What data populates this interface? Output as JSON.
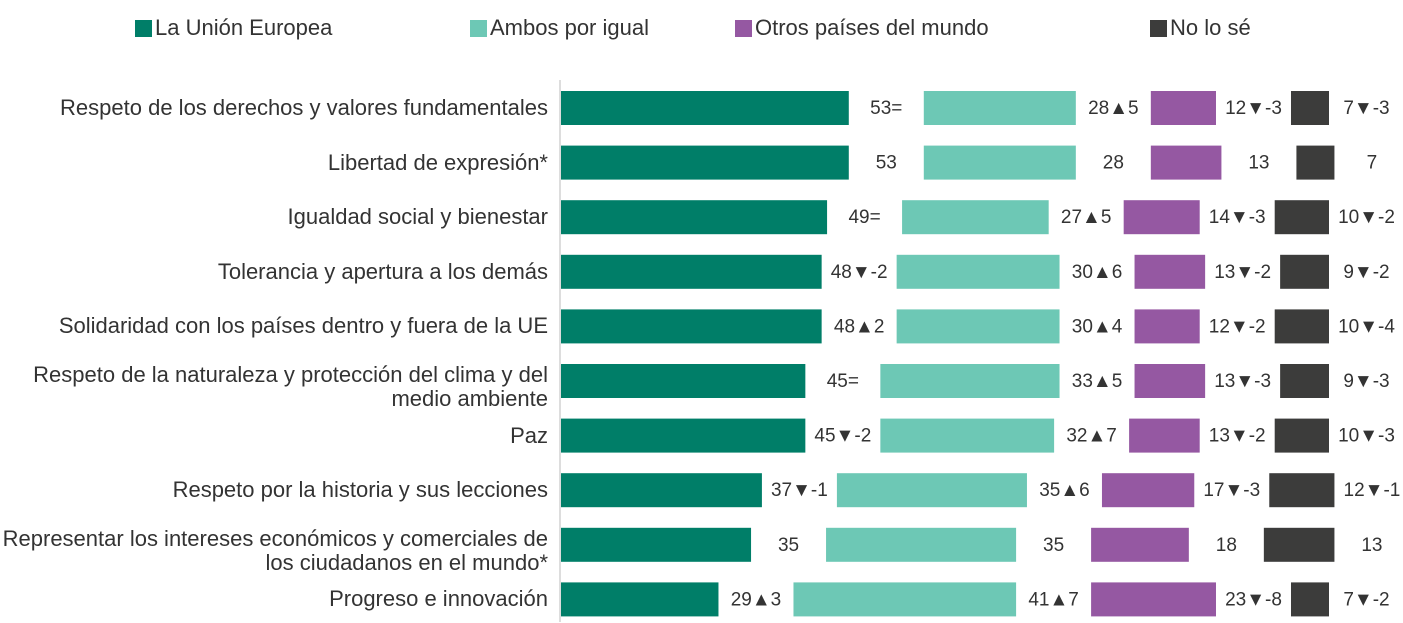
{
  "chart_data": {
    "type": "bar",
    "orientation": "horizontal",
    "stacked": true,
    "categories": [
      "Respeto de los derechos y valores fundamentales",
      "Libertad de expresión*",
      "Igualdad social y bienestar",
      "Tolerancia y apertura a los demás",
      "Solidaridad con los países dentro y fuera de la UE",
      "Respeto de la naturaleza y protección del clima y del medio ambiente",
      "Paz",
      "Respeto por la historia y sus lecciones",
      "Representar los intereses económicos y comerciales de los ciudadanos en el mundo*",
      "Progreso e innovación"
    ],
    "series": [
      {
        "name": "La Unión Europea",
        "color": "#007e68",
        "values": [
          53,
          53,
          49,
          48,
          48,
          45,
          45,
          37,
          35,
          29
        ],
        "value_labels": [
          "53=",
          "53",
          "49=",
          "48▼-2",
          "48▲2",
          "45=",
          "45▼-2",
          "37▼-1",
          "35",
          "29▲3"
        ]
      },
      {
        "name": "Ambos por igual",
        "color": "#6dc8b5",
        "values": [
          28,
          28,
          27,
          30,
          30,
          33,
          32,
          35,
          35,
          41
        ],
        "value_labels": [
          "28▲5",
          "28",
          "27▲5",
          "30▲6",
          "30▲4",
          "33▲5",
          "32▲7",
          "35▲6",
          "35",
          "41▲7"
        ]
      },
      {
        "name": "Otros países del mundo",
        "color": "#9558a2",
        "values": [
          12,
          13,
          14,
          13,
          12,
          13,
          13,
          17,
          18,
          23
        ],
        "value_labels": [
          "12▼-3",
          "13",
          "14▼-3",
          "13▼-2",
          "12▼-2",
          "13▼-3",
          "13▼-2",
          "17▼-3",
          "18",
          "23▼-8"
        ]
      },
      {
        "name": "No lo sé",
        "color": "#3c3c3b",
        "values": [
          7,
          7,
          10,
          9,
          10,
          9,
          10,
          12,
          13,
          7
        ],
        "value_labels": [
          "7▼-3",
          "7",
          "10▼-2",
          "9▼-2",
          "10▼-4",
          "9▼-3",
          "10▼-3",
          "12▼-1",
          "13",
          "7▼-2"
        ]
      }
    ]
  }
}
